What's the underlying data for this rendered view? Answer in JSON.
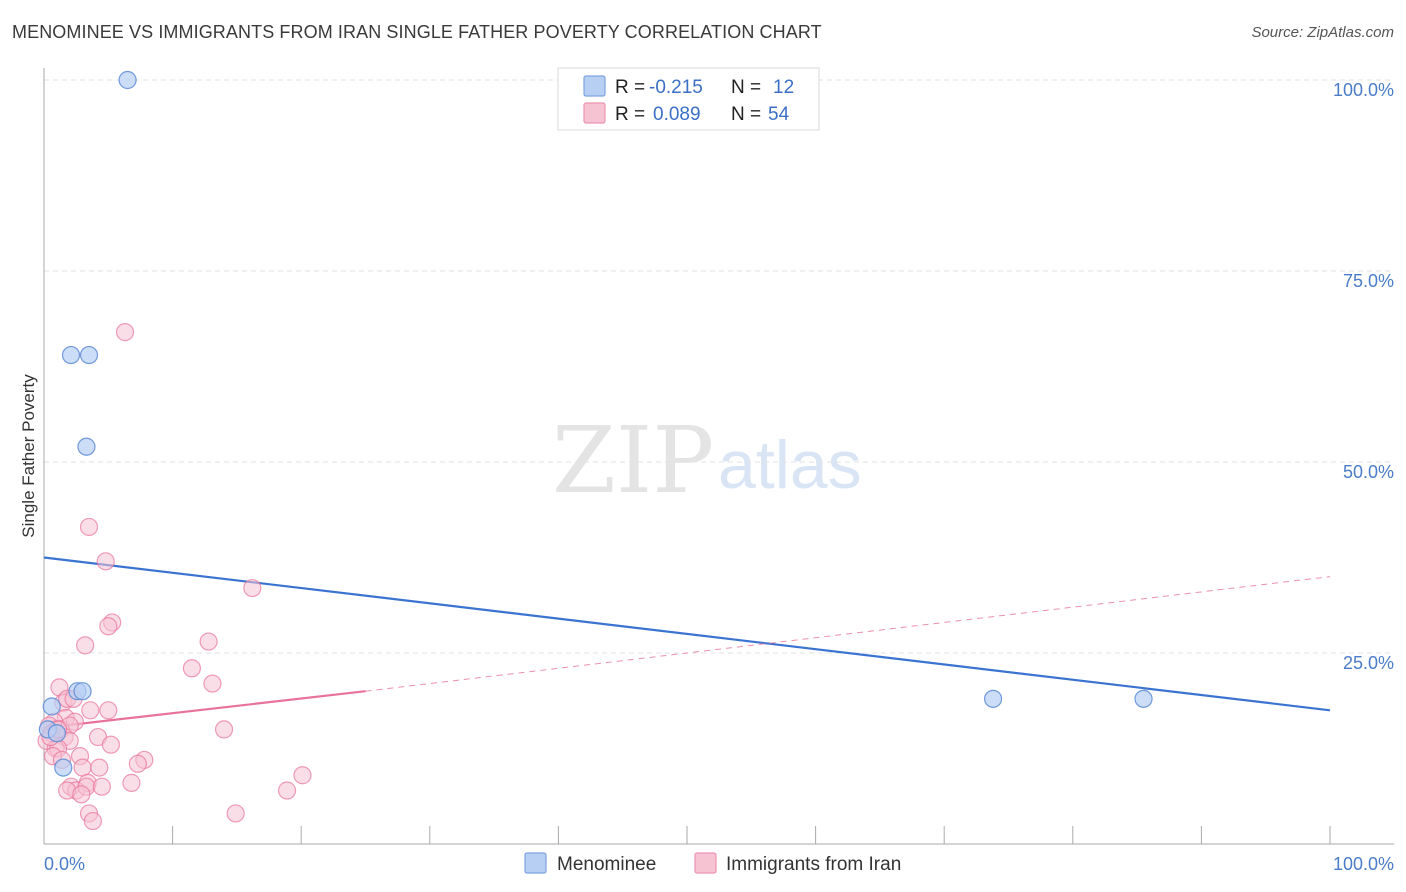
{
  "header": {
    "title": "MENOMINEE VS IMMIGRANTS FROM IRAN SINGLE FATHER POVERTY CORRELATION CHART",
    "source": "Source: ZipAtlas.com"
  },
  "watermark": {
    "zip": "ZIP",
    "atlas": "atlas"
  },
  "colors": {
    "blue": "#3b73d0",
    "blue_fill": "#b7cff3",
    "pink": "#e8739a",
    "pink_fill": "#f6c3d3",
    "tick": "#4a7cc8",
    "grid": "#e2e2e2"
  },
  "legend": {
    "rows": [
      {
        "r_label": "R =",
        "r_value": "-0.215",
        "n_label": "N =",
        "n_value": "12"
      },
      {
        "r_label": "R =",
        "r_value": "0.089",
        "n_label": "N =",
        "n_value": "54"
      }
    ]
  },
  "chart_data": {
    "type": "scatter",
    "title": "MENOMINEE VS IMMIGRANTS FROM IRAN SINGLE FATHER POVERTY CORRELATION CHART",
    "xlabel": "",
    "ylabel": "Single Father Poverty",
    "xlim": [
      0,
      100
    ],
    "ylim": [
      0,
      100
    ],
    "x_tick_labels": [
      "0.0%",
      "100.0%"
    ],
    "y_ticks": [
      25,
      50,
      75,
      100
    ],
    "y_tick_labels": [
      "25.0%",
      "50.0%",
      "75.0%",
      "100.0%"
    ],
    "grid": true,
    "series": [
      {
        "name": "Menominee",
        "color": "#3b73d0",
        "r": -0.215,
        "n": 12,
        "points": [
          [
            6.5,
            100.0
          ],
          [
            2.1,
            64.0
          ],
          [
            3.5,
            64.0
          ],
          [
            3.3,
            52.0
          ],
          [
            2.6,
            20.0
          ],
          [
            3.0,
            20.0
          ],
          [
            0.6,
            18.0
          ],
          [
            0.3,
            15.0
          ],
          [
            1.0,
            14.5
          ],
          [
            1.5,
            10.0
          ],
          [
            73.8,
            19.0
          ],
          [
            85.5,
            19.0
          ]
        ],
        "trend": {
          "x": [
            0,
            100
          ],
          "y": [
            37.5,
            17.5
          ],
          "style": "solid"
        }
      },
      {
        "name": "Immigrants from Iran",
        "color": "#e8739a",
        "r": 0.089,
        "n": 54,
        "points": [
          [
            6.3,
            67.0
          ],
          [
            3.5,
            41.5
          ],
          [
            4.8,
            37.0
          ],
          [
            16.2,
            33.5
          ],
          [
            5.3,
            29.0
          ],
          [
            5.0,
            28.5
          ],
          [
            3.2,
            26.0
          ],
          [
            12.8,
            26.5
          ],
          [
            11.5,
            23.0
          ],
          [
            13.1,
            21.0
          ],
          [
            1.2,
            20.5
          ],
          [
            1.5,
            18.5
          ],
          [
            1.8,
            19.0
          ],
          [
            2.3,
            19.0
          ],
          [
            3.6,
            17.5
          ],
          [
            5.0,
            17.5
          ],
          [
            1.7,
            16.5
          ],
          [
            2.4,
            16.0
          ],
          [
            0.8,
            16.0
          ],
          [
            0.4,
            15.5
          ],
          [
            1.3,
            15.0
          ],
          [
            1.0,
            15.0
          ],
          [
            2.0,
            15.5
          ],
          [
            0.6,
            14.5
          ],
          [
            1.6,
            14.0
          ],
          [
            4.2,
            14.0
          ],
          [
            0.2,
            13.5
          ],
          [
            2.0,
            13.5
          ],
          [
            0.9,
            12.5
          ],
          [
            1.1,
            12.5
          ],
          [
            5.2,
            13.0
          ],
          [
            14.0,
            15.0
          ],
          [
            0.7,
            11.5
          ],
          [
            1.4,
            11.0
          ],
          [
            2.8,
            11.5
          ],
          [
            7.8,
            11.0
          ],
          [
            3.0,
            10.0
          ],
          [
            7.3,
            10.5
          ],
          [
            4.3,
            10.0
          ],
          [
            20.1,
            9.0
          ],
          [
            3.4,
            8.0
          ],
          [
            6.8,
            8.0
          ],
          [
            2.1,
            7.5
          ],
          [
            2.5,
            7.0
          ],
          [
            3.3,
            7.5
          ],
          [
            4.5,
            7.5
          ],
          [
            1.8,
            7.0
          ],
          [
            2.9,
            6.5
          ],
          [
            18.9,
            7.0
          ],
          [
            3.5,
            4.0
          ],
          [
            14.9,
            4.0
          ],
          [
            3.8,
            3.0
          ],
          [
            0.5,
            14.0
          ],
          [
            1.1,
            15.0
          ]
        ],
        "trend_solid": {
          "x": [
            0,
            25
          ],
          "y": [
            15.2,
            20.0
          ]
        },
        "trend_dashed": {
          "x": [
            25,
            100
          ],
          "y": [
            20.0,
            35.0
          ]
        }
      }
    ]
  }
}
